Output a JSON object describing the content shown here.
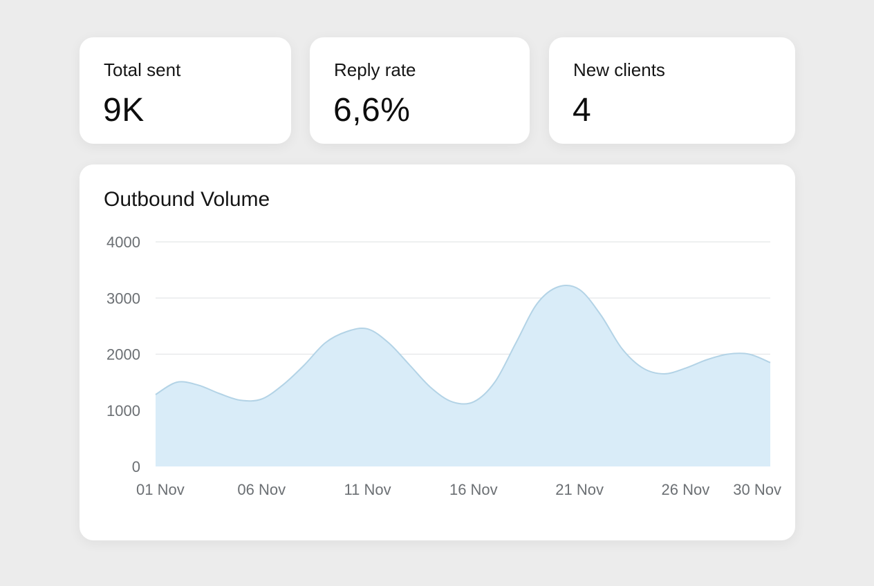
{
  "kpis": [
    {
      "label": "Total sent",
      "value": "9K"
    },
    {
      "label": "Reply rate",
      "value": "6,6%"
    },
    {
      "label": "New clients",
      "value": "4"
    }
  ],
  "chart_data": {
    "type": "area",
    "title": "Outbound Volume",
    "xlabel": "",
    "ylabel": "",
    "ylim": [
      0,
      4000
    ],
    "yticks": [
      0,
      1000,
      2000,
      3000,
      4000
    ],
    "xticks": [
      "01 Nov",
      "06 Nov",
      "11 Nov",
      "16 Nov",
      "21 Nov",
      "26 Nov",
      "30 Nov"
    ],
    "x": [
      "01 Nov",
      "02 Nov",
      "03 Nov",
      "04 Nov",
      "05 Nov",
      "06 Nov",
      "07 Nov",
      "08 Nov",
      "09 Nov",
      "10 Nov",
      "11 Nov",
      "12 Nov",
      "13 Nov",
      "14 Nov",
      "15 Nov",
      "16 Nov",
      "17 Nov",
      "18 Nov",
      "19 Nov",
      "20 Nov",
      "21 Nov",
      "22 Nov",
      "23 Nov",
      "24 Nov",
      "25 Nov",
      "26 Nov",
      "27 Nov",
      "28 Nov",
      "29 Nov",
      "30 Nov"
    ],
    "series": [
      {
        "values": [
          1280,
          1500,
          1450,
          1300,
          1180,
          1200,
          1450,
          1800,
          2200,
          2400,
          2450,
          2200,
          1800,
          1400,
          1150,
          1150,
          1500,
          2200,
          2900,
          3200,
          3150,
          2700,
          2100,
          1750,
          1650,
          1750,
          1900,
          2000,
          2000,
          1850
        ]
      }
    ],
    "grid": true,
    "fill_color": "#d9ecf8",
    "line_color": "#b3d3e6"
  }
}
